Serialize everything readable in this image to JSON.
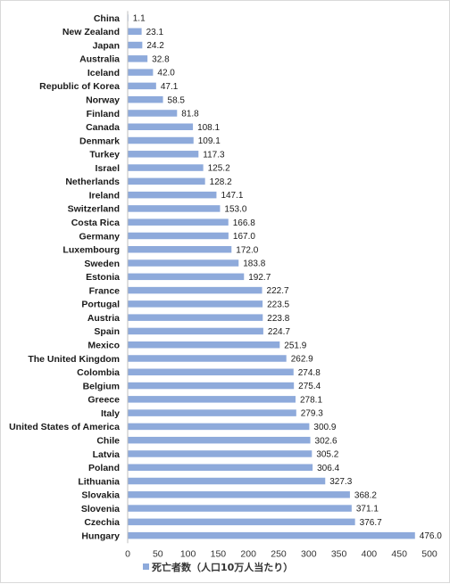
{
  "chart_data": {
    "type": "bar",
    "orientation": "horizontal",
    "categories": [
      "China",
      "New Zealand",
      "Japan",
      "Australia",
      "Iceland",
      "Republic of Korea",
      "Norway",
      "Finland",
      "Canada",
      "Denmark",
      "Turkey",
      "Israel",
      "Netherlands",
      "Ireland",
      "Switzerland",
      "Costa Rica",
      "Germany",
      "Luxembourg",
      "Sweden",
      "Estonia",
      "France",
      "Portugal",
      "Austria",
      "Spain",
      "Mexico",
      "The United Kingdom",
      "Colombia",
      "Belgium",
      "Greece",
      "Italy",
      "United States of America",
      "Chile",
      "Latvia",
      "Poland",
      "Lithuania",
      "Slovakia",
      "Slovenia",
      "Czechia",
      "Hungary"
    ],
    "series": [
      {
        "name": "死亡者数（人口10万人当たり）",
        "color": "#8eaadb",
        "values": [
          1.1,
          23.1,
          24.2,
          32.8,
          42.0,
          47.1,
          58.5,
          81.8,
          108.1,
          109.1,
          117.3,
          125.2,
          128.2,
          147.1,
          153.0,
          166.8,
          167.0,
          172.0,
          183.8,
          192.7,
          222.7,
          223.5,
          223.8,
          224.7,
          251.9,
          262.9,
          274.8,
          275.4,
          278.1,
          279.3,
          300.9,
          302.6,
          305.2,
          306.4,
          327.3,
          368.2,
          371.1,
          376.7,
          476.0
        ]
      }
    ],
    "value_labels": [
      "1.1",
      "23.1",
      "24.2",
      "32.8",
      "42.0",
      "47.1",
      "58.5",
      "81.8",
      "108.1",
      "109.1",
      "117.3",
      "125.2",
      "128.2",
      "147.1",
      "153.0",
      "166.8",
      "167.0",
      "172.0",
      "183.8",
      "192.7",
      "222.7",
      "223.5",
      "223.8",
      "224.7",
      "251.9",
      "262.9",
      "274.8",
      "275.4",
      "278.1",
      "279.3",
      "300.9",
      "302.6",
      "305.2",
      "306.4",
      "327.3",
      "368.2",
      "371.1",
      "376.7",
      "476.0"
    ],
    "xlim": [
      0,
      500
    ],
    "xticks": [
      "0",
      "50",
      "100",
      "150",
      "200",
      "250",
      "300",
      "350",
      "400",
      "450",
      "500"
    ],
    "grid": false,
    "legend_position": "bottom",
    "title": "",
    "xlabel": "",
    "ylabel": ""
  }
}
